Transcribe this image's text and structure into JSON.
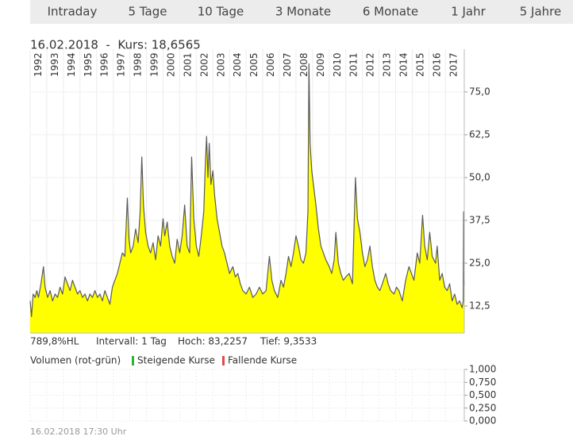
{
  "tabs": [
    "Intraday",
    "5 Tage",
    "10 Tage",
    "3 Monate",
    "6 Monate",
    "1 Jahr",
    "5 Jahre"
  ],
  "header": "16.02.2018  -  Kurs: 18,6565",
  "stats": [
    "789,8%HL",
    "Intervall: 1 Tag",
    "Hoch: 83,2257",
    "Tief: 9,3533"
  ],
  "footer": "16.02.2018 17:30 Uhr",
  "chart_data": [
    {
      "type": "area",
      "color": "#ffff00",
      "line_color": "#5a5a5a",
      "grid": true,
      "xlim": [
        1992,
        2018.13
      ],
      "xticks": [
        1992,
        1993,
        1994,
        1995,
        1996,
        1997,
        1998,
        1999,
        2000,
        2001,
        2002,
        2003,
        2004,
        2005,
        2006,
        2007,
        2008,
        2009,
        2010,
        2011,
        2012,
        2013,
        2014,
        2015,
        2016,
        2017
      ],
      "ylim": [
        4.63,
        83.33
      ],
      "yticks": [
        {
          "value": 12.5,
          "label": "12,5"
        },
        {
          "value": 25,
          "label": "25,0"
        },
        {
          "value": 37.5,
          "label": "37,5"
        },
        {
          "value": 50,
          "label": "50,0"
        },
        {
          "value": 62.5,
          "label": "62,5"
        },
        {
          "value": 75,
          "label": "75,0"
        }
      ],
      "x": [
        1992.0,
        1992.08,
        1992.18,
        1992.3,
        1992.4,
        1992.5,
        1992.65,
        1992.8,
        1992.9,
        1993.05,
        1993.2,
        1993.35,
        1993.5,
        1993.65,
        1993.8,
        1993.95,
        1994.1,
        1994.25,
        1994.4,
        1994.55,
        1994.7,
        1994.85,
        1995.0,
        1995.15,
        1995.3,
        1995.45,
        1995.6,
        1995.75,
        1995.9,
        1996.05,
        1996.2,
        1996.35,
        1996.5,
        1996.65,
        1996.8,
        1996.95,
        1997.1,
        1997.25,
        1997.4,
        1997.55,
        1997.7,
        1997.85,
        1997.95,
        1998.05,
        1998.2,
        1998.35,
        1998.5,
        1998.62,
        1998.72,
        1998.82,
        1998.95,
        1999.1,
        1999.25,
        1999.4,
        1999.55,
        1999.7,
        1999.85,
        2000.0,
        2000.1,
        2000.25,
        2000.4,
        2000.55,
        2000.7,
        2000.85,
        2001.0,
        2001.15,
        2001.3,
        2001.45,
        2001.6,
        2001.72,
        2001.85,
        2002.0,
        2002.15,
        2002.3,
        2002.45,
        2002.55,
        2002.62,
        2002.7,
        2002.78,
        2002.88,
        2003.0,
        2003.1,
        2003.25,
        2003.4,
        2003.55,
        2003.7,
        2003.85,
        2004.0,
        2004.2,
        2004.35,
        2004.5,
        2004.65,
        2004.8,
        2005.0,
        2005.2,
        2005.4,
        2005.6,
        2005.8,
        2006.0,
        2006.2,
        2006.4,
        2006.55,
        2006.7,
        2006.9,
        2007.1,
        2007.25,
        2007.4,
        2007.55,
        2007.7,
        2007.85,
        2008.0,
        2008.15,
        2008.3,
        2008.45,
        2008.6,
        2008.72,
        2008.78,
        2008.85,
        2008.95,
        2009.05,
        2009.2,
        2009.35,
        2009.5,
        2009.65,
        2009.8,
        2010.0,
        2010.15,
        2010.3,
        2010.4,
        2010.55,
        2010.7,
        2010.85,
        2011.0,
        2011.2,
        2011.4,
        2011.58,
        2011.7,
        2011.85,
        2012.0,
        2012.15,
        2012.3,
        2012.45,
        2012.6,
        2012.75,
        2012.9,
        2013.05,
        2013.2,
        2013.4,
        2013.55,
        2013.7,
        2013.9,
        2014.05,
        2014.2,
        2014.4,
        2014.6,
        2014.8,
        2014.95,
        2015.1,
        2015.3,
        2015.45,
        2015.62,
        2015.75,
        2015.9,
        2016.05,
        2016.2,
        2016.4,
        2016.5,
        2016.65,
        2016.8,
        2016.95,
        2017.1,
        2017.25,
        2017.4,
        2017.55,
        2017.7,
        2017.85,
        2018.0,
        2018.07,
        2018.09,
        2018.13
      ],
      "values": [
        14,
        9.4,
        16,
        15,
        17,
        15,
        19,
        24,
        18,
        15,
        17,
        14,
        16,
        15,
        18,
        16,
        21,
        19,
        17,
        20,
        18,
        16,
        17,
        15,
        16,
        14,
        16,
        15,
        17,
        15,
        16,
        14,
        17,
        15,
        13,
        18,
        20,
        22,
        25,
        28,
        27,
        44,
        32,
        28,
        30,
        35,
        31,
        40,
        56,
        42,
        34,
        30,
        28,
        31,
        26,
        33,
        30,
        38,
        33,
        37,
        30,
        27,
        25,
        32,
        28,
        33,
        42,
        30,
        28,
        56,
        38,
        30,
        27,
        33,
        40,
        55,
        62,
        50,
        60,
        48,
        52,
        45,
        38,
        34,
        30,
        28,
        25,
        22,
        24,
        21,
        22,
        19,
        17,
        16,
        18,
        15,
        16,
        18,
        16,
        17,
        27,
        20,
        17,
        15,
        20,
        18,
        22,
        27,
        24,
        28,
        33,
        30,
        26,
        25,
        28,
        40,
        83.2,
        60,
        52,
        48,
        42,
        35,
        30,
        28,
        26,
        24,
        22,
        26,
        34,
        25,
        22,
        20,
        21,
        22,
        19,
        50,
        38,
        34,
        28,
        24,
        26,
        30,
        24,
        20,
        18,
        17,
        19,
        22,
        19,
        17,
        16,
        18,
        17,
        14,
        20,
        24,
        22,
        20,
        28,
        25,
        39,
        30,
        26,
        34,
        27,
        25,
        30,
        20,
        22,
        18,
        17,
        19,
        14,
        16,
        13,
        14,
        12,
        14,
        40,
        18.6565
      ]
    },
    {
      "type": "bar",
      "title": "Volumen (rot-grün)",
      "ylim": [
        0,
        1
      ],
      "yticks": [
        {
          "value": 0,
          "label": "0,000"
        },
        {
          "value": 0.25,
          "label": "0,250"
        },
        {
          "value": 0.5,
          "label": "0,500"
        },
        {
          "value": 0.75,
          "label": "0,750"
        },
        {
          "value": 1,
          "label": "1,000"
        }
      ],
      "series": [
        {
          "name": "Steigende Kurse",
          "color": "#2bb534",
          "values": []
        },
        {
          "name": "Fallende Kurse",
          "color": "#e24b4b",
          "values": []
        }
      ]
    }
  ]
}
